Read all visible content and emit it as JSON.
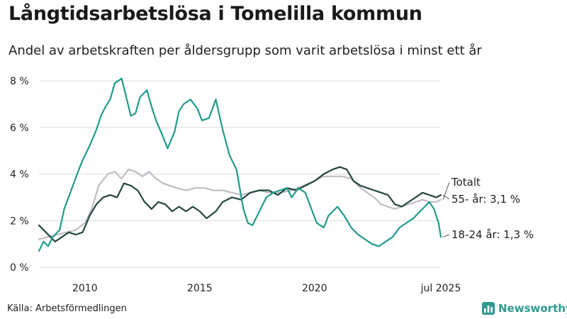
{
  "title": "Långtidsarbetslösa i Tomelilla kommun",
  "subtitle": "Andel av arbetskraften per åldersgrupp som varit arbetslösa i minst ett år",
  "source": "Källa: Arbetsförmedlingen",
  "brand": "Newsworthy",
  "icons": {
    "brand": "bar-chart-icon"
  },
  "colors": {
    "young": "#1f9b8a",
    "old": "#24463f",
    "total": "#c3bcc6",
    "grid": "#dddddd",
    "brand": "#2d9a8e"
  },
  "chart_data": {
    "type": "line",
    "title": "Långtidsarbetslösa i Tomelilla kommun",
    "subtitle": "Andel av arbetskraften per åldersgrupp som varit arbetslösa i minst ett år",
    "xlabel": "",
    "ylabel": "",
    "ylim": [
      0,
      8
    ],
    "xlim": [
      2008.0,
      2025.5
    ],
    "y_ticks": [
      0,
      2,
      4,
      6,
      8
    ],
    "y_tick_labels": [
      "0 %",
      "2 %",
      "4 %",
      "6 %",
      "8 %"
    ],
    "x_ticks": [
      2010,
      2015,
      2020,
      2025.5
    ],
    "x_tick_labels": [
      "2010",
      "2015",
      "2020",
      "jul 2025"
    ],
    "grid": true,
    "legend": "labels at line ends",
    "series": [
      {
        "name": "18-24 år",
        "label": "18-24 år: 1,3 %",
        "color": "#1f9b8a",
        "x": [
          2008.0,
          2008.2,
          2008.4,
          2008.6,
          2008.9,
          2009.1,
          2009.4,
          2009.7,
          2009.9,
          2010.2,
          2010.5,
          2010.7,
          2010.9,
          2011.1,
          2011.3,
          2011.6,
          2011.8,
          2012.0,
          2012.2,
          2012.4,
          2012.7,
          2012.9,
          2013.1,
          2013.4,
          2013.6,
          2013.9,
          2014.1,
          2014.3,
          2014.6,
          2014.9,
          2015.1,
          2015.4,
          2015.7,
          2016.0,
          2016.3,
          2016.6,
          2016.9,
          2017.1,
          2017.3,
          2017.6,
          2017.9,
          2018.2,
          2018.5,
          2018.8,
          2019.0,
          2019.3,
          2019.6,
          2019.9,
          2020.1,
          2020.4,
          2020.6,
          2020.8,
          2021.0,
          2021.3,
          2021.6,
          2021.9,
          2022.2,
          2022.5,
          2022.8,
          2023.1,
          2023.4,
          2023.7,
          2024.0,
          2024.3,
          2024.6,
          2024.8,
          2025.0,
          2025.2,
          2025.4,
          2025.5
        ],
        "values": [
          0.7,
          1.1,
          0.9,
          1.3,
          1.6,
          2.5,
          3.3,
          4.1,
          4.6,
          5.2,
          5.9,
          6.5,
          6.9,
          7.2,
          7.9,
          8.1,
          7.3,
          6.5,
          6.6,
          7.3,
          7.6,
          6.9,
          6.3,
          5.6,
          5.1,
          5.8,
          6.7,
          7.0,
          7.2,
          6.8,
          6.3,
          6.4,
          7.2,
          5.9,
          4.8,
          4.2,
          2.5,
          1.9,
          1.8,
          2.4,
          3.0,
          3.2,
          3.3,
          3.4,
          3.0,
          3.4,
          3.2,
          2.4,
          1.9,
          1.7,
          2.2,
          2.4,
          2.6,
          2.2,
          1.7,
          1.4,
          1.2,
          1.0,
          0.9,
          1.1,
          1.3,
          1.7,
          1.9,
          2.1,
          2.4,
          2.6,
          2.8,
          2.5,
          1.9,
          1.3
        ]
      },
      {
        "name": "55- år",
        "label": "55- år: 3,1 %",
        "color": "#24463f",
        "x": [
          2008.0,
          2008.3,
          2008.7,
          2009.0,
          2009.3,
          2009.6,
          2009.9,
          2010.2,
          2010.5,
          2010.8,
          2011.1,
          2011.4,
          2011.7,
          2012.0,
          2012.3,
          2012.6,
          2012.9,
          2013.2,
          2013.5,
          2013.8,
          2014.1,
          2014.4,
          2014.7,
          2015.0,
          2015.3,
          2015.7,
          2016.0,
          2016.4,
          2016.8,
          2017.2,
          2017.6,
          2018.0,
          2018.4,
          2018.8,
          2019.2,
          2019.6,
          2020.0,
          2020.4,
          2020.8,
          2021.1,
          2021.4,
          2021.7,
          2022.0,
          2022.3,
          2022.6,
          2022.9,
          2023.2,
          2023.5,
          2023.8,
          2024.1,
          2024.4,
          2024.7,
          2025.0,
          2025.3,
          2025.5
        ],
        "values": [
          1.8,
          1.5,
          1.1,
          1.3,
          1.5,
          1.4,
          1.5,
          2.2,
          2.7,
          3.0,
          3.1,
          3.0,
          3.6,
          3.5,
          3.3,
          2.8,
          2.5,
          2.8,
          2.7,
          2.4,
          2.6,
          2.4,
          2.6,
          2.4,
          2.1,
          2.4,
          2.8,
          3.0,
          2.9,
          3.2,
          3.3,
          3.3,
          3.1,
          3.4,
          3.3,
          3.5,
          3.7,
          4.0,
          4.2,
          4.3,
          4.2,
          3.7,
          3.5,
          3.4,
          3.3,
          3.2,
          3.1,
          2.7,
          2.6,
          2.8,
          3.0,
          3.2,
          3.1,
          3.0,
          3.1
        ]
      },
      {
        "name": "Totalt",
        "label": "Totalt",
        "color": "#c3bcc6",
        "x": [
          2008.0,
          2008.4,
          2008.8,
          2009.2,
          2009.6,
          2010.0,
          2010.3,
          2010.6,
          2011.0,
          2011.3,
          2011.6,
          2011.9,
          2012.2,
          2012.5,
          2012.8,
          2013.1,
          2013.4,
          2013.7,
          2014.0,
          2014.4,
          2014.8,
          2015.2,
          2015.6,
          2016.0,
          2016.4,
          2016.8,
          2017.2,
          2017.6,
          2018.0,
          2018.5,
          2019.0,
          2019.5,
          2020.0,
          2020.4,
          2020.8,
          2021.2,
          2021.6,
          2022.0,
          2022.3,
          2022.6,
          2022.9,
          2023.2,
          2023.5,
          2023.8,
          2024.1,
          2024.4,
          2024.7,
          2025.0,
          2025.3,
          2025.5
        ],
        "values": [
          1.2,
          1.3,
          1.4,
          1.5,
          1.6,
          1.9,
          2.5,
          3.5,
          4.0,
          4.1,
          3.8,
          4.2,
          4.1,
          3.9,
          4.1,
          3.8,
          3.6,
          3.5,
          3.4,
          3.3,
          3.4,
          3.4,
          3.3,
          3.3,
          3.2,
          3.1,
          3.2,
          3.3,
          3.2,
          3.2,
          3.3,
          3.5,
          3.7,
          3.9,
          3.9,
          3.9,
          3.8,
          3.4,
          3.2,
          3.0,
          2.7,
          2.6,
          2.5,
          2.6,
          2.7,
          2.8,
          2.9,
          2.8,
          2.8,
          2.9
        ]
      }
    ]
  }
}
